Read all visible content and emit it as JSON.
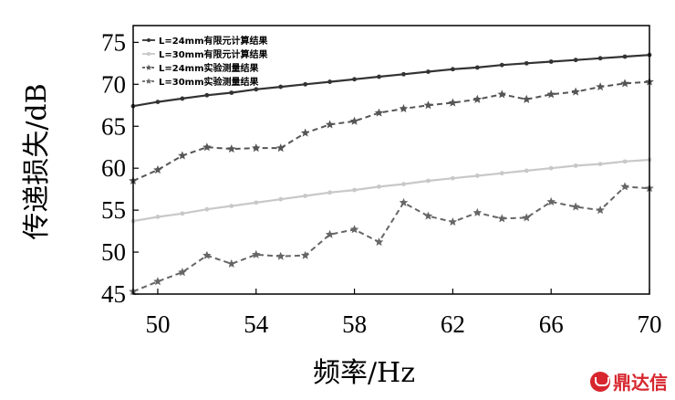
{
  "chart_data": {
    "type": "line",
    "xlabel": "频率/Hz",
    "ylabel": "传递损失/dB",
    "xlim": [
      49,
      70
    ],
    "ylim": [
      45,
      77
    ],
    "xticks": [
      50,
      54,
      58,
      62,
      66,
      70
    ],
    "yticks": [
      45,
      50,
      55,
      60,
      65,
      70,
      75
    ],
    "legend_position": "top-left",
    "grid": false,
    "x": [
      49,
      50,
      51,
      52,
      53,
      54,
      55,
      56,
      57,
      58,
      59,
      60,
      61,
      62,
      63,
      64,
      65,
      66,
      67,
      68,
      69,
      70
    ],
    "series": [
      {
        "name": "L=24mm有限元计算结果",
        "style": "solid-dot",
        "color": "#333333",
        "values": [
          67.4,
          67.9,
          68.3,
          68.7,
          69.0,
          69.4,
          69.7,
          70.0,
          70.3,
          70.6,
          70.9,
          71.2,
          71.5,
          71.8,
          72.0,
          72.3,
          72.5,
          72.7,
          72.9,
          73.1,
          73.3,
          73.5
        ]
      },
      {
        "name": "L=30mm有限元计算结果",
        "style": "solid-dot",
        "color": "#c8c8c8",
        "values": [
          53.7,
          54.2,
          54.6,
          55.1,
          55.5,
          55.9,
          56.3,
          56.7,
          57.1,
          57.4,
          57.8,
          58.1,
          58.5,
          58.8,
          59.1,
          59.4,
          59.7,
          60.0,
          60.3,
          60.5,
          60.8,
          61.0
        ]
      },
      {
        "name": "L=24mm实验测量结果",
        "style": "dashed-star",
        "color": "#555555",
        "values": [
          58.5,
          59.8,
          61.5,
          62.5,
          62.3,
          62.4,
          62.4,
          64.2,
          65.2,
          65.6,
          66.6,
          67.1,
          67.5,
          67.8,
          68.2,
          68.8,
          68.2,
          68.8,
          69.1,
          69.7,
          70.1,
          70.3
        ]
      },
      {
        "name": "L=30mm实验测量结果",
        "style": "dashed-star",
        "color": "#666666",
        "values": [
          45.3,
          46.5,
          47.6,
          49.6,
          48.6,
          49.7,
          49.5,
          49.6,
          52.1,
          52.7,
          51.2,
          55.9,
          54.3,
          53.6,
          54.7,
          54.0,
          54.1,
          56.0,
          55.4,
          55.0,
          57.8,
          57.6
        ]
      }
    ]
  },
  "watermark": {
    "text": "鼎达信",
    "color": "#d7262e"
  }
}
